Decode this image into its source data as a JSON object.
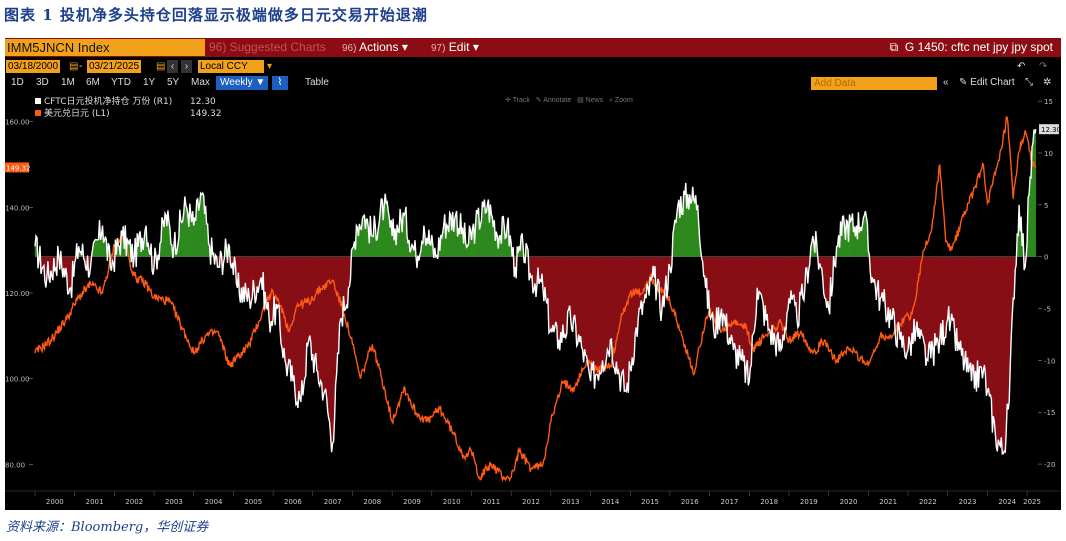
{
  "figure": {
    "title": "图表 1  投机净多头持仓回落显示极端做多日元交易开始退潮",
    "source": "资料来源：Bloomberg，华创证券"
  },
  "toolbar": {
    "ticker": "IMM5JNCN Index",
    "suggested": "96) Suggested Charts",
    "actions_num": "96)",
    "actions": "Actions",
    "edit_num": "97)",
    "edit": "Edit",
    "chart_title": "G 1450: cftc net jpy jpy spot",
    "start_date": "03/18/2000",
    "end_date": "03/21/2025",
    "currency": "Local CCY",
    "periods": [
      "1D",
      "3D",
      "1M",
      "6M",
      "YTD",
      "1Y",
      "5Y",
      "Max"
    ],
    "frequency": "Weekly",
    "table": "Table",
    "add_data": "Add Data",
    "edit_chart": "Edit Chart",
    "tools": [
      "Track",
      "Annotate",
      "News",
      "Zoom"
    ]
  },
  "colors": {
    "positioning": "#ffffff",
    "usdjpy": "#ff5a14",
    "positive_fill": "#2e8b1e",
    "negative_fill": "#8a0f17",
    "toolbar_red": "#8b0d13",
    "bloomberg_orange": "#f2a21a"
  },
  "chart_data": {
    "type": "line",
    "x_range": [
      2000,
      2025.25
    ],
    "x_ticks": [
      "2000",
      "2001",
      "2002",
      "2003",
      "2004",
      "2005",
      "2006",
      "2007",
      "2008",
      "2009",
      "2010",
      "2011",
      "2012",
      "2013",
      "2014",
      "2015",
      "2016",
      "2017",
      "2018",
      "2019",
      "2020",
      "2021",
      "2022",
      "2023",
      "2024",
      "2025"
    ],
    "left_axis": {
      "ticks": [
        "80.00",
        "100.00",
        "120.00",
        "140.00",
        "160.00"
      ],
      "range": [
        74,
        166
      ]
    },
    "right_axis": {
      "ticks": [
        "-20",
        "-15",
        "-10",
        "-5",
        "0",
        "5",
        "10",
        "15"
      ],
      "range": [
        -22.5,
        15.5
      ]
    },
    "series": [
      {
        "name": "CFTC日元投机净持仓 万份 (R1)",
        "axis": "right",
        "last_value": "12.30",
        "fill_to_zero": true,
        "points": [
          [
            2000.0,
            1
          ],
          [
            2000.3,
            -2
          ],
          [
            2000.6,
            0
          ],
          [
            2000.9,
            -3
          ],
          [
            2001.1,
            1
          ],
          [
            2001.4,
            -1
          ],
          [
            2001.7,
            3
          ],
          [
            2001.9,
            -1
          ],
          [
            2002.2,
            2
          ],
          [
            2002.5,
            0
          ],
          [
            2002.8,
            3
          ],
          [
            2003.0,
            -1
          ],
          [
            2003.3,
            4
          ],
          [
            2003.5,
            1
          ],
          [
            2003.8,
            5
          ],
          [
            2004.0,
            3
          ],
          [
            2004.2,
            6
          ],
          [
            2004.4,
            1
          ],
          [
            2004.6,
            -1
          ],
          [
            2004.9,
            1
          ],
          [
            2005.1,
            -3
          ],
          [
            2005.4,
            -4
          ],
          [
            2005.7,
            -2
          ],
          [
            2005.9,
            -6
          ],
          [
            2006.1,
            -5
          ],
          [
            2006.3,
            -10
          ],
          [
            2006.5,
            -12
          ],
          [
            2006.7,
            -14
          ],
          [
            2006.9,
            -8
          ],
          [
            2007.1,
            -11
          ],
          [
            2007.3,
            -13
          ],
          [
            2007.5,
            -18
          ],
          [
            2007.7,
            -6
          ],
          [
            2007.9,
            -3
          ],
          [
            2008.1,
            3
          ],
          [
            2008.3,
            4
          ],
          [
            2008.5,
            2
          ],
          [
            2008.8,
            5
          ],
          [
            2009.0,
            2
          ],
          [
            2009.3,
            4
          ],
          [
            2009.6,
            0
          ],
          [
            2009.8,
            3
          ],
          [
            2010.1,
            0
          ],
          [
            2010.3,
            3
          ],
          [
            2010.6,
            4
          ],
          [
            2010.9,
            1
          ],
          [
            2011.1,
            3
          ],
          [
            2011.4,
            5
          ],
          [
            2011.7,
            2
          ],
          [
            2011.9,
            3
          ],
          [
            2012.1,
            -1
          ],
          [
            2012.3,
            1
          ],
          [
            2012.5,
            -2
          ],
          [
            2012.8,
            -3
          ],
          [
            2013.0,
            -7
          ],
          [
            2013.2,
            -8
          ],
          [
            2013.5,
            -6
          ],
          [
            2013.8,
            -9
          ],
          [
            2014.0,
            -12
          ],
          [
            2014.3,
            -10
          ],
          [
            2014.5,
            -8
          ],
          [
            2014.7,
            -11
          ],
          [
            2014.9,
            -13
          ],
          [
            2015.2,
            -6
          ],
          [
            2015.4,
            -4
          ],
          [
            2015.6,
            -2
          ],
          [
            2015.8,
            -5
          ],
          [
            2016.0,
            -1
          ],
          [
            2016.2,
            5
          ],
          [
            2016.5,
            6
          ],
          [
            2016.7,
            5
          ],
          [
            2016.9,
            -3
          ],
          [
            2017.1,
            -7
          ],
          [
            2017.3,
            -5
          ],
          [
            2017.6,
            -9
          ],
          [
            2017.8,
            -10
          ],
          [
            2018.0,
            -12
          ],
          [
            2018.2,
            -3
          ],
          [
            2018.5,
            -7
          ],
          [
            2018.8,
            -9
          ],
          [
            2019.0,
            -4
          ],
          [
            2019.2,
            -6
          ],
          [
            2019.4,
            -3
          ],
          [
            2019.6,
            2
          ],
          [
            2019.8,
            -1
          ],
          [
            2020.0,
            -5
          ],
          [
            2020.2,
            1
          ],
          [
            2020.4,
            3
          ],
          [
            2020.7,
            3
          ],
          [
            2020.9,
            4
          ],
          [
            2021.1,
            -2
          ],
          [
            2021.3,
            -4
          ],
          [
            2021.6,
            -6
          ],
          [
            2021.8,
            -8
          ],
          [
            2022.0,
            -9
          ],
          [
            2022.2,
            -7
          ],
          [
            2022.5,
            -10
          ],
          [
            2022.8,
            -8
          ],
          [
            2023.0,
            -6
          ],
          [
            2023.3,
            -9
          ],
          [
            2023.6,
            -12
          ],
          [
            2023.9,
            -11
          ],
          [
            2024.0,
            -13
          ],
          [
            2024.2,
            -17
          ],
          [
            2024.4,
            -19
          ],
          [
            2024.55,
            -14
          ],
          [
            2024.65,
            -4
          ],
          [
            2024.8,
            5
          ],
          [
            2024.95,
            -1
          ],
          [
            2025.05,
            6
          ],
          [
            2025.15,
            11
          ],
          [
            2025.22,
            12.3
          ]
        ]
      },
      {
        "name": "美元兑日元 (L1)",
        "axis": "left",
        "last_value": "149.32",
        "points": [
          [
            2000.0,
            106
          ],
          [
            2000.4,
            109
          ],
          [
            2000.8,
            114
          ],
          [
            2001.1,
            119
          ],
          [
            2001.4,
            122
          ],
          [
            2001.7,
            120
          ],
          [
            2002.0,
            131
          ],
          [
            2002.2,
            133
          ],
          [
            2002.5,
            124
          ],
          [
            2002.8,
            122
          ],
          [
            2003.0,
            119
          ],
          [
            2003.4,
            118
          ],
          [
            2003.8,
            110
          ],
          [
            2004.0,
            106
          ],
          [
            2004.3,
            110
          ],
          [
            2004.6,
            111
          ],
          [
            2004.9,
            103
          ],
          [
            2005.1,
            105
          ],
          [
            2005.4,
            108
          ],
          [
            2005.8,
            117
          ],
          [
            2005.95,
            120
          ],
          [
            2006.2,
            117
          ],
          [
            2006.4,
            111
          ],
          [
            2006.6,
            117
          ],
          [
            2006.9,
            118
          ],
          [
            2007.2,
            121
          ],
          [
            2007.5,
            123
          ],
          [
            2007.8,
            115
          ],
          [
            2008.0,
            108
          ],
          [
            2008.2,
            100
          ],
          [
            2008.5,
            108
          ],
          [
            2008.8,
            98
          ],
          [
            2009.0,
            90
          ],
          [
            2009.3,
            98
          ],
          [
            2009.6,
            92
          ],
          [
            2009.9,
            90
          ],
          [
            2010.2,
            93
          ],
          [
            2010.5,
            88
          ],
          [
            2010.8,
            82
          ],
          [
            2011.0,
            83
          ],
          [
            2011.2,
            77
          ],
          [
            2011.5,
            80
          ],
          [
            2011.8,
            77
          ],
          [
            2012.0,
            77
          ],
          [
            2012.2,
            83
          ],
          [
            2012.5,
            79
          ],
          [
            2012.8,
            80
          ],
          [
            2013.0,
            90
          ],
          [
            2013.3,
            99
          ],
          [
            2013.6,
            98
          ],
          [
            2013.9,
            104
          ],
          [
            2014.2,
            102
          ],
          [
            2014.5,
            103
          ],
          [
            2014.8,
            115
          ],
          [
            2015.0,
            120
          ],
          [
            2015.3,
            120
          ],
          [
            2015.5,
            124
          ],
          [
            2015.8,
            120
          ],
          [
            2016.0,
            118
          ],
          [
            2016.3,
            110
          ],
          [
            2016.6,
            101
          ],
          [
            2016.9,
            114
          ],
          [
            2017.0,
            116
          ],
          [
            2017.3,
            111
          ],
          [
            2017.6,
            113
          ],
          [
            2017.9,
            112
          ],
          [
            2018.1,
            107
          ],
          [
            2018.4,
            110
          ],
          [
            2018.8,
            113
          ],
          [
            2019.0,
            109
          ],
          [
            2019.3,
            111
          ],
          [
            2019.6,
            106
          ],
          [
            2019.9,
            109
          ],
          [
            2020.2,
            104
          ],
          [
            2020.5,
            107
          ],
          [
            2020.8,
            105
          ],
          [
            2021.0,
            103
          ],
          [
            2021.3,
            110
          ],
          [
            2021.6,
            110
          ],
          [
            2021.9,
            114
          ],
          [
            2022.1,
            115
          ],
          [
            2022.4,
            130
          ],
          [
            2022.6,
            135
          ],
          [
            2022.8,
            150
          ],
          [
            2022.95,
            132
          ],
          [
            2023.1,
            130
          ],
          [
            2023.4,
            138
          ],
          [
            2023.7,
            145
          ],
          [
            2023.9,
            150
          ],
          [
            2024.0,
            141
          ],
          [
            2024.3,
            151
          ],
          [
            2024.5,
            161
          ],
          [
            2024.65,
            142
          ],
          [
            2024.8,
            153
          ],
          [
            2024.95,
            158
          ],
          [
            2025.1,
            151
          ],
          [
            2025.22,
            149.32
          ]
        ]
      }
    ],
    "zero_line": 0
  }
}
